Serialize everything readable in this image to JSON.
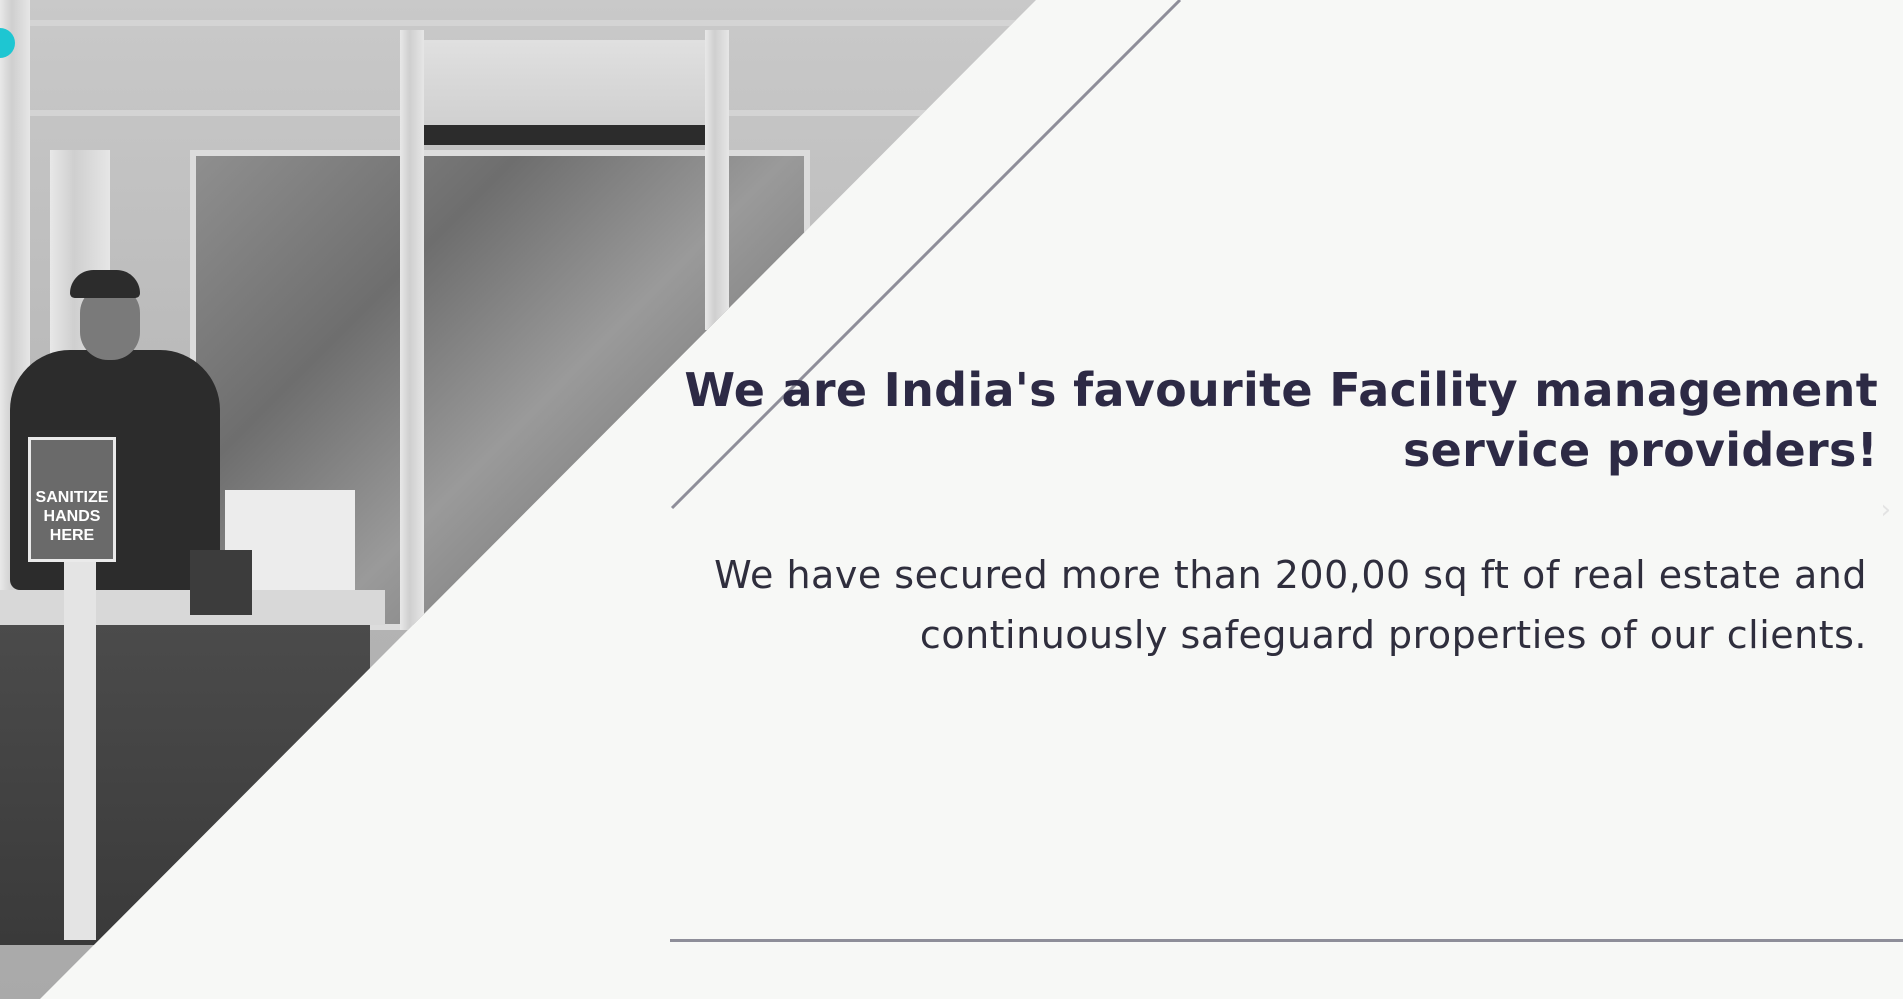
{
  "hero": {
    "headline": "We are India's favourite Facility management service providers!",
    "subtext": "We have secured more than 200,00 sq ft of real estate and continuously safeguard properties of our clients."
  },
  "photo": {
    "sign_text": "SANITIZE HANDS HERE"
  },
  "controls": {
    "next_arrow": "›"
  },
  "colors": {
    "background": "#f7f8f6",
    "heading": "#2d2a45",
    "accent_dot": "#1ec6d2",
    "rule": "#8e8e99"
  }
}
